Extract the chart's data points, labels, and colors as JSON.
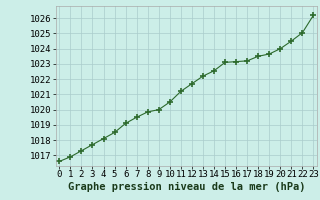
{
  "x": [
    0,
    1,
    2,
    3,
    4,
    5,
    6,
    7,
    8,
    9,
    10,
    11,
    12,
    13,
    14,
    15,
    16,
    17,
    18,
    19,
    20,
    21,
    22,
    23
  ],
  "y": [
    1016.6,
    1016.9,
    1017.3,
    1017.7,
    1018.1,
    1018.5,
    1019.1,
    1019.5,
    1019.85,
    1020.0,
    1020.5,
    1021.2,
    1021.7,
    1022.2,
    1022.55,
    1023.1,
    1023.15,
    1023.2,
    1023.5,
    1023.65,
    1024.0,
    1024.5,
    1025.05,
    1026.2
  ],
  "line_color": "#2d6a2d",
  "marker": "+",
  "marker_size": 4,
  "marker_color": "#2d6a2d",
  "line_width": 0.8,
  "bg_color": "#cceee8",
  "grid_color": "#aacccc",
  "ylabel_ticks": [
    1017,
    1018,
    1019,
    1020,
    1021,
    1022,
    1023,
    1024,
    1025,
    1026
  ],
  "ylim": [
    1016.3,
    1026.8
  ],
  "xlim": [
    -0.3,
    23.3
  ],
  "xlabel": "Graphe pression niveau de la mer (hPa)",
  "xlabel_fontsize": 7.5,
  "tick_fontsize": 6.5,
  "spine_color": "#aaaaaa"
}
